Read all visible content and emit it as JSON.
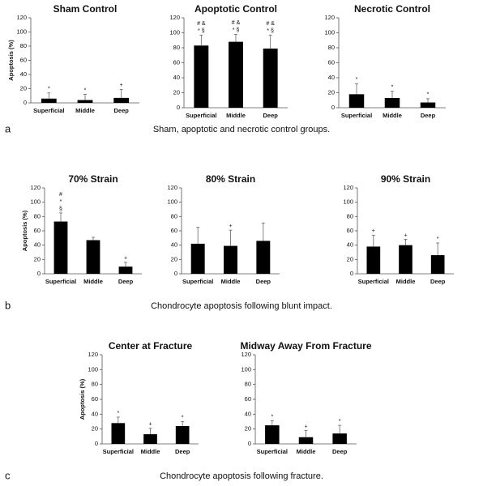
{
  "chart_data": [
    {
      "type": "bar",
      "title": "Sham Control",
      "ylabel": "Apoptosis (%)",
      "categories": [
        "Superficial",
        "Middle",
        "Deep"
      ],
      "values": [
        6,
        4,
        7
      ],
      "errors": [
        8,
        8,
        12
      ],
      "annotations": [
        [
          "*"
        ],
        [
          "*"
        ],
        [
          "+"
        ]
      ],
      "color": "#000000",
      "ylim": [
        0,
        120
      ],
      "yticks": [
        0,
        20,
        40,
        60,
        80,
        100,
        120
      ]
    },
    {
      "type": "bar",
      "title": "Apoptotic Control",
      "categories": [
        "Superficial",
        "Middle",
        "Deep"
      ],
      "values": [
        83,
        88,
        79
      ],
      "errors": [
        14,
        10,
        18
      ],
      "annotations": [
        [
          "# &",
          "* §"
        ],
        [
          "# &",
          "* §"
        ],
        [
          "# &",
          "* §"
        ]
      ],
      "color": "#000000",
      "ylim": [
        0,
        120
      ],
      "yticks": [
        0,
        20,
        40,
        60,
        80,
        100,
        120
      ]
    },
    {
      "type": "bar",
      "title": "Necrotic Control",
      "categories": [
        "Superficial",
        "Middle",
        "Deep"
      ],
      "values": [
        18,
        13,
        7
      ],
      "errors": [
        14,
        9,
        5
      ],
      "annotations": [
        [
          "*"
        ],
        [
          "*"
        ],
        [
          "*"
        ]
      ],
      "color": "#000000",
      "ylim": [
        0,
        120
      ],
      "yticks": [
        0,
        20,
        40,
        60,
        80,
        100,
        120
      ]
    },
    {
      "type": "bar",
      "title": "70% Strain",
      "ylabel": "Apoptosis (%)",
      "categories": [
        "Superficial",
        "Middle",
        "Deep"
      ],
      "values": [
        73,
        47,
        10
      ],
      "errors": [
        12,
        4,
        6
      ],
      "annotations": [
        [
          "#",
          "*",
          "§"
        ],
        [],
        [
          "+"
        ]
      ],
      "color": "#000000",
      "ylim": [
        0,
        120
      ],
      "yticks": [
        0,
        20,
        40,
        60,
        80,
        100,
        120
      ]
    },
    {
      "type": "bar",
      "title": "80% Strain",
      "categories": [
        "Superficial",
        "Middle",
        "Deep"
      ],
      "values": [
        42,
        39,
        46
      ],
      "errors": [
        23,
        22,
        25
      ],
      "annotations": [
        [],
        [
          "+"
        ],
        []
      ],
      "color": "#000000",
      "ylim": [
        0,
        120
      ],
      "yticks": [
        0,
        20,
        40,
        60,
        80,
        100,
        120
      ]
    },
    {
      "type": "bar",
      "title": "90% Strain",
      "categories": [
        "Superficial",
        "Middle",
        "Deep"
      ],
      "values": [
        38,
        40,
        26
      ],
      "errors": [
        16,
        8,
        17
      ],
      "annotations": [
        [
          "+"
        ],
        [
          "+"
        ],
        [
          "*"
        ]
      ],
      "color": "#000000",
      "ylim": [
        0,
        120
      ],
      "yticks": [
        0,
        20,
        40,
        60,
        80,
        100,
        120
      ]
    },
    {
      "type": "bar",
      "title": "Center at Fracture",
      "ylabel": "Apoptosis (%)",
      "categories": [
        "Superficial",
        "Middle",
        "Deep"
      ],
      "values": [
        28,
        13,
        24
      ],
      "errors": [
        8,
        8,
        6
      ],
      "annotations": [
        [
          "*"
        ],
        [
          "+"
        ],
        [
          "*"
        ]
      ],
      "color": "#000000",
      "ylim": [
        0,
        120
      ],
      "yticks": [
        0,
        20,
        40,
        60,
        80,
        100,
        120
      ]
    },
    {
      "type": "bar",
      "title": "Midway Away From Fracture",
      "categories": [
        "Superficial",
        "Middle",
        "Deep"
      ],
      "values": [
        25,
        9,
        14
      ],
      "errors": [
        6,
        9,
        11
      ],
      "annotations": [
        [
          "*"
        ],
        [
          "+"
        ],
        [
          "*"
        ]
      ],
      "color": "#000000",
      "ylim": [
        0,
        120
      ],
      "yticks": [
        0,
        20,
        40,
        60,
        80,
        100,
        120
      ]
    }
  ],
  "captions": [
    {
      "letter": "a",
      "text": "Sham, apoptotic and necrotic control groups."
    },
    {
      "letter": "b",
      "text": "Chondrocyte apoptosis following blunt impact."
    },
    {
      "letter": "c",
      "text": "Chondrocyte apoptosis following fracture."
    }
  ]
}
